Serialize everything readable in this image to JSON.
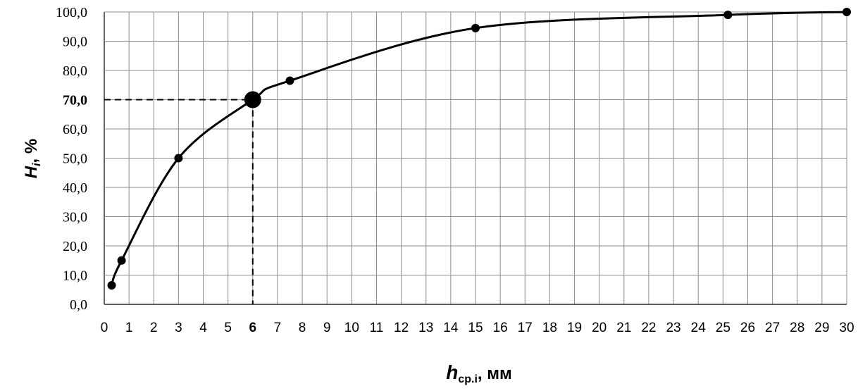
{
  "chart_data": {
    "type": "line",
    "x_ticks": [
      "0",
      "1",
      "2",
      "3",
      "4",
      "5",
      "6",
      "7",
      "8",
      "9",
      "10",
      "11",
      "12",
      "13",
      "14",
      "15",
      "16",
      "17",
      "18",
      "19",
      "20",
      "21",
      "22",
      "23",
      "24",
      "25",
      "26",
      "27",
      "28",
      "29",
      "30"
    ],
    "y_ticks": [
      "0,0",
      "10,0",
      "20,0",
      "30,0",
      "40,0",
      "50,0",
      "60,0",
      "70,0",
      "80,0",
      "90,0",
      "100,0"
    ],
    "highlighted_x_tick": "6",
    "highlighted_y_tick": "70,0",
    "xlim": [
      0,
      30
    ],
    "ylim": [
      0,
      100
    ],
    "grid": true,
    "series": [
      {
        "points": [
          {
            "x": 0.3,
            "y": 6.5
          },
          {
            "x": 0.7,
            "y": 15.0
          },
          {
            "x": 3.0,
            "y": 50.0
          },
          {
            "x": 6.0,
            "y": 70.0
          },
          {
            "x": 7.5,
            "y": 76.5
          },
          {
            "x": 15.0,
            "y": 94.5
          },
          {
            "x": 25.2,
            "y": 99.0
          },
          {
            "x": 30.0,
            "y": 100.0
          }
        ]
      }
    ],
    "highlight_point": {
      "x": 6.0,
      "y": 70.0
    },
    "ylabel": {
      "main": "H",
      "sub": "i",
      "suffix": ", %"
    },
    "xlabel": {
      "main": "h",
      "sub": "ср.i",
      "suffix": ", мм"
    }
  }
}
